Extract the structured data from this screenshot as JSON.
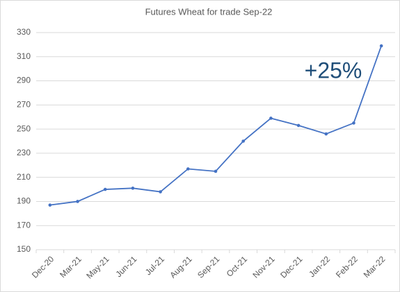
{
  "chart_data": {
    "type": "line",
    "title": "Futures Wheat for trade Sep-22",
    "categories": [
      "Dec-20",
      "Mar-21",
      "May-21",
      "Jun-21",
      "Jul-21",
      "Aug-21",
      "Sep-21",
      "Oct-21",
      "Nov-21",
      "Dec-21",
      "Jan-22",
      "Feb-22",
      "Mar-22"
    ],
    "series": [
      {
        "name": "Futures Wheat",
        "color": "#4472c4",
        "values": [
          187,
          190,
          200,
          201,
          198,
          217,
          215,
          240,
          259,
          253,
          246,
          255,
          319
        ]
      }
    ],
    "ylim": [
      150,
      330
    ],
    "yticks": [
      150,
      170,
      190,
      210,
      230,
      250,
      270,
      290,
      310,
      330
    ],
    "grid": true,
    "annotation": "+25%"
  }
}
